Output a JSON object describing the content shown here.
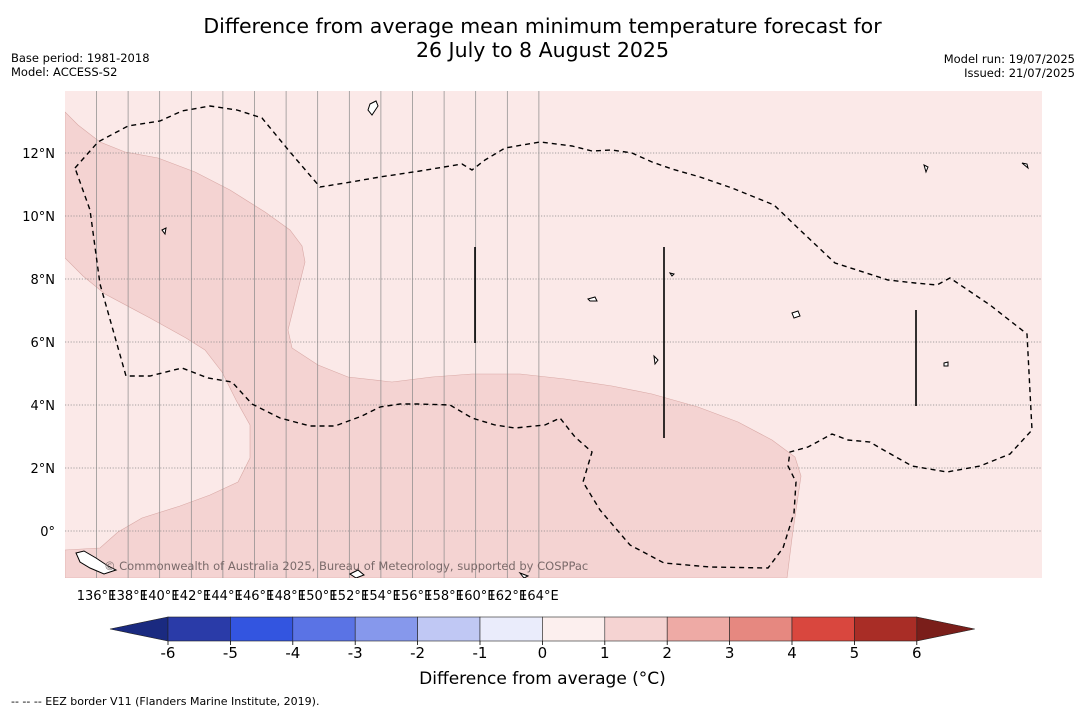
{
  "header": {
    "title_line1": "Difference from average mean minimum temperature forecast for",
    "title_line2": "26 July to 8 August 2025",
    "base_period": "Base period: 1981-2018",
    "model": "Model: ACCESS-S2",
    "model_run": "Model run: 19/07/2025",
    "issued": "Issued: 21/07/2025"
  },
  "map": {
    "lon_ticks": [
      "136°E",
      "138°E",
      "140°E",
      "142°E",
      "144°E",
      "146°E",
      "148°E",
      "150°E",
      "152°E",
      "154°E",
      "156°E",
      "158°E",
      "160°E",
      "162°E",
      "164°E"
    ],
    "lat_ticks": [
      "12°N",
      "10°N",
      "8°N",
      "6°N",
      "4°N",
      "2°N",
      "0°"
    ],
    "copyright": "© Commonwealth of Australia 2025, Bureau of Meteorology, supported by COSPPac",
    "colors": {
      "background_0_1": "#fbe9e8",
      "band_1_2": "#f4d3d2",
      "land": "#000000"
    }
  },
  "colorbar": {
    "title": "Difference from average (°C)",
    "tick_labels": [
      "-6",
      "-5",
      "-4",
      "-3",
      "-2",
      "-1",
      "0",
      "1",
      "2",
      "3",
      "4",
      "5",
      "6"
    ],
    "colors": [
      "#2a3ba8",
      "#3355e0",
      "#5a73e5",
      "#8698ec",
      "#c0c8f4",
      "#eaecfb",
      "#fcefee",
      "#f5d3d2",
      "#eeaaa5",
      "#e68880",
      "#d9473e",
      "#a92d26"
    ],
    "under_color": "#1a2a80",
    "over_color": "#7a1e1a"
  },
  "footer": {
    "legend_text": "--  --  -- EEZ border V11 (Flanders Marine Institute, 2019)."
  }
}
